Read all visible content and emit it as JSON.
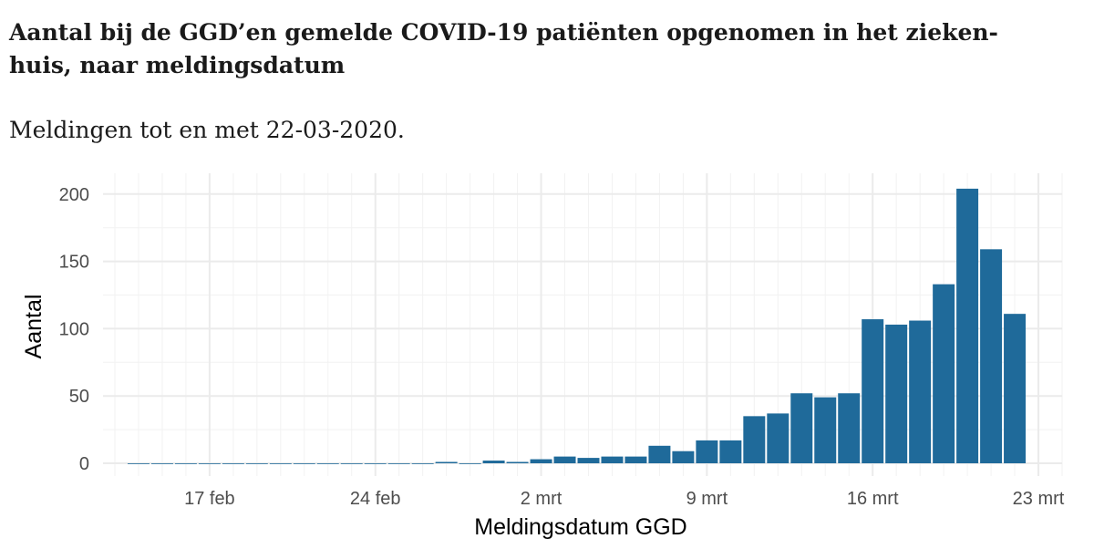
{
  "header": {
    "title": "Aantal bij de GGD’en gemelde COVID-19 patiënten opgenomen in het zieken-huis, naar meldingsdatum",
    "title_line1": "Aantal bij de GGD’en gemelde COVID-19 patiënten opgenomen in het zieken-",
    "title_line2": "huis, naar meldingsdatum",
    "subtitle": "Meldingen tot en met 22-03-2020."
  },
  "colors": {
    "bar": "#1f6a9a"
  },
  "chart_data": {
    "type": "bar",
    "title": "Aantal bij de GGD’en gemelde COVID-19 patiënten opgenomen in het zieken-huis, naar meldingsdatum",
    "subtitle": "Meldingen tot en met 22-03-2020.",
    "xlabel": "Meldingsdatum GGD",
    "ylabel": "Aantal",
    "ylim": [
      0,
      210
    ],
    "y_ticks": [
      0,
      50,
      100,
      150,
      200
    ],
    "x_tick_labels": [
      "17 feb",
      "24 feb",
      "2 mrt",
      "9 mrt",
      "16 mrt",
      "23 mrt"
    ],
    "x_tick_days": [
      17,
      24,
      31,
      38,
      45,
      52
    ],
    "x_domain_days": [
      12.5,
      53
    ],
    "x_day_note": "day index counted from 1 feb 2020",
    "categories": [
      "14 feb",
      "15 feb",
      "16 feb",
      "17 feb",
      "18 feb",
      "19 feb",
      "20 feb",
      "21 feb",
      "22 feb",
      "23 feb",
      "24 feb",
      "25 feb",
      "26 feb",
      "27 feb",
      "28 feb",
      "29 feb",
      "1 mrt",
      "2 mrt",
      "3 mrt",
      "4 mrt",
      "5 mrt",
      "6 mrt",
      "7 mrt",
      "8 mrt",
      "9 mrt",
      "10 mrt",
      "11 mrt",
      "12 mrt",
      "13 mrt",
      "14 mrt",
      "15 mrt",
      "16 mrt",
      "17 mrt",
      "18 mrt",
      "19 mrt",
      "20 mrt",
      "21 mrt",
      "22 mrt"
    ],
    "category_days": [
      14,
      15,
      16,
      17,
      18,
      19,
      20,
      21,
      22,
      23,
      24,
      25,
      26,
      27,
      28,
      29,
      30,
      31,
      32,
      33,
      34,
      35,
      36,
      37,
      38,
      39,
      40,
      41,
      42,
      43,
      44,
      45,
      46,
      47,
      48,
      49,
      50,
      51
    ],
    "values": [
      0,
      0,
      0,
      0,
      0,
      0,
      0,
      0,
      0,
      0,
      0,
      0,
      0,
      1,
      0,
      2,
      1,
      3,
      5,
      4,
      5,
      5,
      13,
      9,
      17,
      17,
      35,
      37,
      52,
      49,
      52,
      107,
      103,
      106,
      133,
      204,
      159,
      111
    ],
    "grid": true
  }
}
